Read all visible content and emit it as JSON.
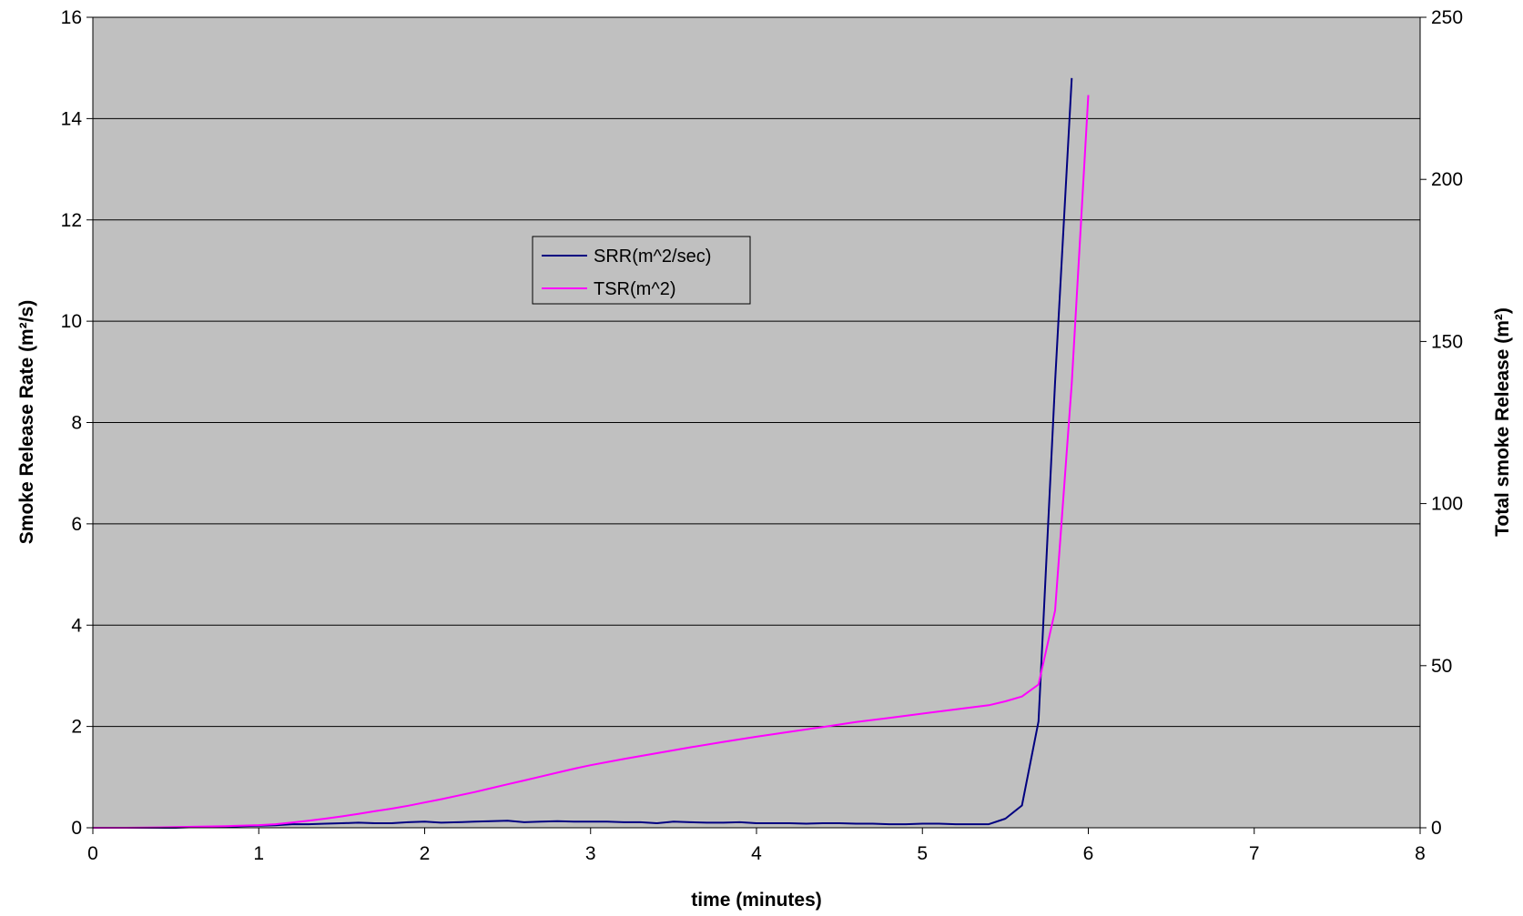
{
  "chart_data": {
    "type": "line",
    "xlabel": "time (minutes)",
    "ylabel": "Smoke Release Rate (m²/s)",
    "y2label": "Total smoke Release (m²)",
    "xlim": [
      0,
      8
    ],
    "ylim": [
      0,
      16
    ],
    "y2lim": [
      0,
      250
    ],
    "x_ticks": [
      "0",
      "1",
      "2",
      "3",
      "4",
      "5",
      "6",
      "7",
      "8"
    ],
    "y_ticks": [
      "0",
      "2",
      "4",
      "6",
      "8",
      "10",
      "12",
      "14",
      "16"
    ],
    "y2_ticks": [
      "0",
      "50",
      "100",
      "150",
      "200",
      "250"
    ],
    "grid": true,
    "legend_position": "upper-center",
    "plot_background": "#c0c0c0",
    "series": [
      {
        "name": "SRR(m^2/sec)",
        "axis": "left",
        "color": "#000080",
        "x": [
          0,
          0.1,
          0.2,
          0.3,
          0.4,
          0.5,
          0.6,
          0.7,
          0.8,
          0.9,
          1.0,
          1.1,
          1.2,
          1.3,
          1.4,
          1.5,
          1.6,
          1.7,
          1.8,
          1.9,
          2.0,
          2.1,
          2.2,
          2.3,
          2.4,
          2.5,
          2.6,
          2.7,
          2.8,
          2.9,
          3.0,
          3.1,
          3.2,
          3.3,
          3.4,
          3.5,
          3.6,
          3.7,
          3.8,
          3.9,
          4.0,
          4.1,
          4.2,
          4.3,
          4.4,
          4.5,
          4.6,
          4.7,
          4.8,
          4.9,
          5.0,
          5.1,
          5.2,
          5.3,
          5.4,
          5.5,
          5.6,
          5.7,
          5.8,
          5.9
        ],
        "y": [
          0.0,
          0.0,
          0.0,
          0.0,
          0.0,
          0.0,
          0.01,
          0.01,
          0.02,
          0.03,
          0.04,
          0.05,
          0.07,
          0.07,
          0.08,
          0.09,
          0.1,
          0.09,
          0.09,
          0.11,
          0.12,
          0.1,
          0.11,
          0.12,
          0.13,
          0.14,
          0.11,
          0.12,
          0.13,
          0.12,
          0.12,
          0.12,
          0.11,
          0.11,
          0.09,
          0.12,
          0.11,
          0.1,
          0.1,
          0.11,
          0.09,
          0.09,
          0.09,
          0.08,
          0.09,
          0.09,
          0.08,
          0.08,
          0.07,
          0.07,
          0.08,
          0.08,
          0.07,
          0.07,
          0.07,
          0.18,
          0.44,
          2.1,
          8.8,
          14.8
        ]
      },
      {
        "name": "TSR(m^2)",
        "axis": "right",
        "color": "#ff00ff",
        "x": [
          0,
          0.2,
          0.4,
          0.6,
          0.8,
          1.0,
          1.1,
          1.2,
          1.3,
          1.4,
          1.5,
          1.6,
          1.7,
          1.8,
          1.9,
          2.0,
          2.1,
          2.2,
          2.3,
          2.4,
          2.5,
          2.6,
          2.7,
          2.8,
          2.9,
          3.0,
          3.2,
          3.4,
          3.6,
          3.8,
          4.0,
          4.2,
          4.4,
          4.6,
          4.8,
          5.0,
          5.2,
          5.4,
          5.5,
          5.6,
          5.7,
          5.8,
          5.9,
          6.0
        ],
        "y": [
          0,
          0,
          0.1,
          0.3,
          0.5,
          0.8,
          1.1,
          1.6,
          2.2,
          2.8,
          3.5,
          4.3,
          5.1,
          5.9,
          6.8,
          7.8,
          8.8,
          9.9,
          11.0,
          12.2,
          13.4,
          14.6,
          15.8,
          17.0,
          18.2,
          19.3,
          21.2,
          23.0,
          24.8,
          26.5,
          28.1,
          29.6,
          31.1,
          32.6,
          33.9,
          35.2,
          36.5,
          37.8,
          39.0,
          40.5,
          44.2,
          67.0,
          137.0,
          226.0
        ]
      }
    ]
  }
}
